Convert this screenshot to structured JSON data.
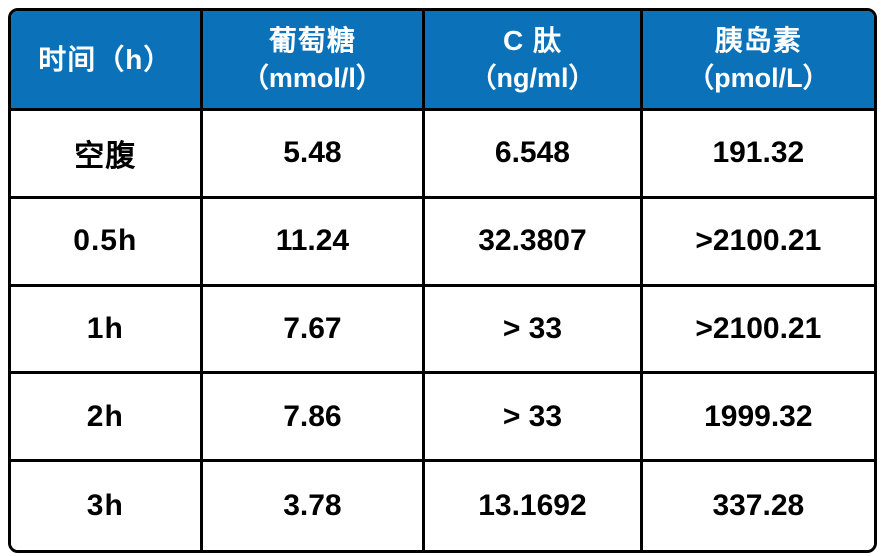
{
  "accent_color": "#0b72ba",
  "border_color": "#000000",
  "header_text_color": "#ffffff",
  "body_text_color": "#000000",
  "table": {
    "columns": [
      {
        "title": "时间（h）",
        "unit": ""
      },
      {
        "title": "葡萄糖",
        "unit": "（mmol/l）"
      },
      {
        "title": "C 肽",
        "unit": "（ng/ml）"
      },
      {
        "title": "胰岛素",
        "unit": "（pmol/L）"
      }
    ],
    "rows": [
      [
        "空腹",
        "5.48",
        "6.548",
        "191.32"
      ],
      [
        "0.5h",
        "11.24",
        "32.3807",
        ">2100.21"
      ],
      [
        "1h",
        "7.67",
        "> 33",
        ">2100.21"
      ],
      [
        "2h",
        "7.86",
        "> 33",
        "1999.32"
      ],
      [
        "3h",
        "3.78",
        "13.1692",
        "337.28"
      ]
    ]
  },
  "chart_data": {
    "type": "table",
    "title": "",
    "columns": [
      "时间（h）",
      "葡萄糖（mmol/l）",
      "C 肽（ng/ml）",
      "胰岛素（pmol/L）"
    ],
    "rows": [
      {
        "time": "空腹",
        "glucose_mmol_l": 5.48,
        "c_peptide_ng_ml": 6.548,
        "insulin_pmol_L": 191.32
      },
      {
        "time": "0.5h",
        "glucose_mmol_l": 11.24,
        "c_peptide_ng_ml": 32.3807,
        "insulin_pmol_L": ">2100.21"
      },
      {
        "time": "1h",
        "glucose_mmol_l": 7.67,
        "c_peptide_ng_ml": ">33",
        "insulin_pmol_L": ">2100.21"
      },
      {
        "time": "2h",
        "glucose_mmol_l": 7.86,
        "c_peptide_ng_ml": ">33",
        "insulin_pmol_L": 1999.32
      },
      {
        "time": "3h",
        "glucose_mmol_l": 3.78,
        "c_peptide_ng_ml": 13.1692,
        "insulin_pmol_L": 337.28
      }
    ],
    "layout": {
      "header_background": "#0b72ba",
      "grid": "on",
      "header_rows": 1
    }
  }
}
